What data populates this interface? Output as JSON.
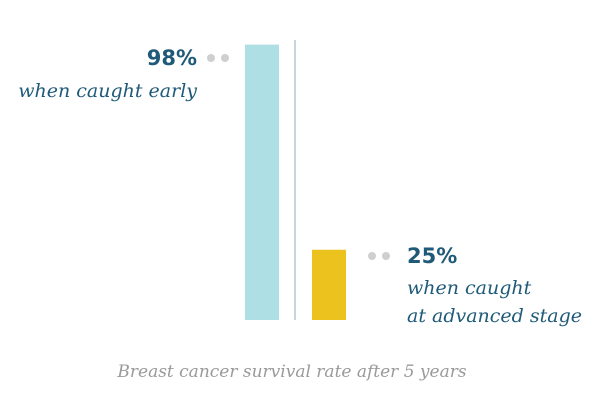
{
  "chart_data": {
    "type": "bar",
    "categories": [
      "when caught early",
      "when caught at advanced stage"
    ],
    "values": [
      98,
      25
    ],
    "value_labels": [
      "98%",
      "25%"
    ],
    "descriptions": [
      [
        "when caught early"
      ],
      [
        "when caught",
        "at advanced stage"
      ]
    ],
    "caption": "Breast cancer survival rate after 5 years",
    "ylim": [
      0,
      100
    ],
    "grid": false,
    "colors": {
      "bars": [
        "#addfe4",
        "#ecc21e"
      ],
      "text": "#1f5a78",
      "divider": "#a7c0ce",
      "dots": "#cfcfcf",
      "caption": "#9a9a9a"
    }
  }
}
